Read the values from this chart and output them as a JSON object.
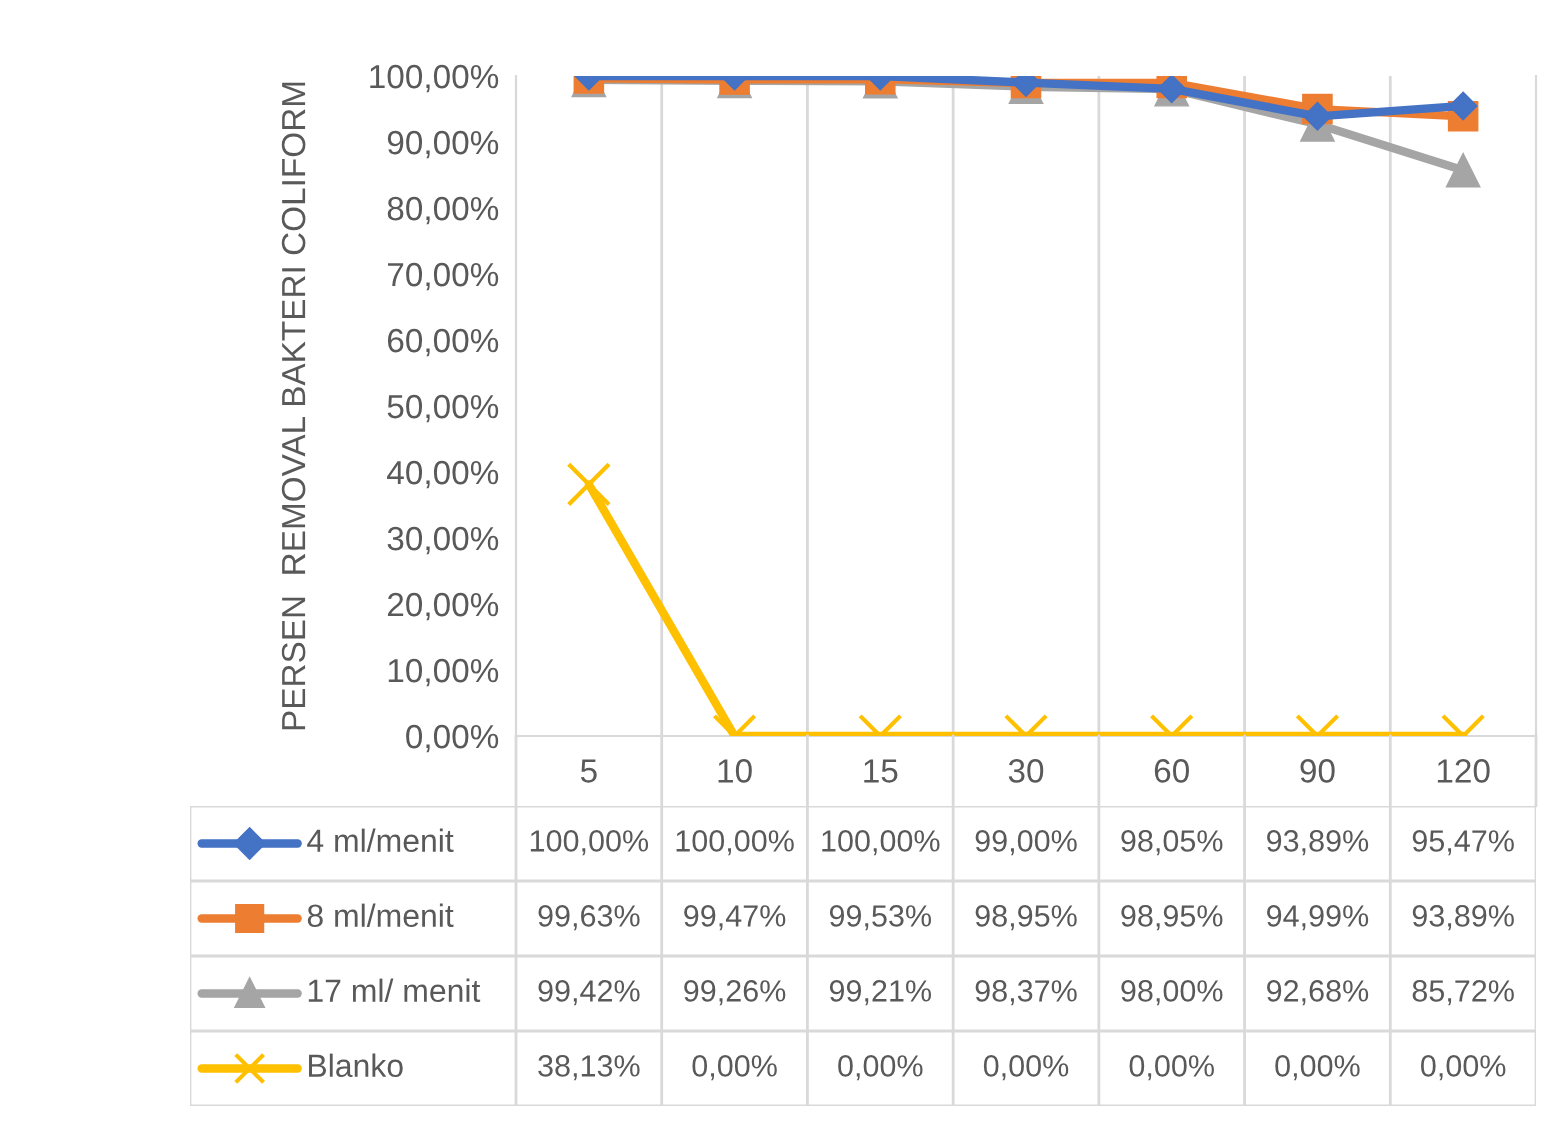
{
  "chart_data": {
    "type": "line",
    "ylabel": "PERSEN  REMOVAL BAKTERI COLIFORM",
    "categories": [
      "5",
      "10",
      "15",
      "30",
      "60",
      "90",
      "120"
    ],
    "series": [
      {
        "name": "4 ml/menit",
        "color": "#4472c4",
        "marker": "diamond",
        "values": [
          100.0,
          100.0,
          100.0,
          99.0,
          98.05,
          93.89,
          95.47
        ],
        "value_labels": [
          "100,00%",
          "100,00%",
          "100,00%",
          "99,00%",
          "98,05%",
          "93,89%",
          "95,47%"
        ]
      },
      {
        "name": "8 ml/menit",
        "color": "#ed7d31",
        "marker": "square",
        "values": [
          99.63,
          99.47,
          99.53,
          98.95,
          98.95,
          94.99,
          93.89
        ],
        "value_labels": [
          "99,63%",
          "99,47%",
          "99,53%",
          "98,95%",
          "98,95%",
          "94,99%",
          "93,89%"
        ]
      },
      {
        "name": "17 ml/ menit",
        "color": "#a5a5a5",
        "marker": "triangle",
        "values": [
          99.42,
          99.26,
          99.21,
          98.37,
          98.0,
          92.68,
          85.72
        ],
        "value_labels": [
          "99,42%",
          "99,26%",
          "99,21%",
          "98,37%",
          "98,00%",
          "92,68%",
          "85,72%"
        ]
      },
      {
        "name": "Blanko",
        "color": "#ffc000",
        "marker": "cross",
        "values": [
          38.13,
          0.0,
          0.0,
          0.0,
          0.0,
          0.0,
          0.0
        ],
        "value_labels": [
          "38,13%",
          "0,00%",
          "0,00%",
          "0,00%",
          "0,00%",
          "0,00%",
          "0,00%"
        ]
      }
    ],
    "ylim": [
      0,
      100
    ],
    "yticks": [
      {
        "value": 0,
        "label": "0,00%"
      },
      {
        "value": 10,
        "label": "10,00%"
      },
      {
        "value": 20,
        "label": "20,00%"
      },
      {
        "value": 30,
        "label": "30,00%"
      },
      {
        "value": 40,
        "label": "40,00%"
      },
      {
        "value": 50,
        "label": "50,00%"
      },
      {
        "value": 60,
        "label": "60,00%"
      },
      {
        "value": 70,
        "label": "70,00%"
      },
      {
        "value": 80,
        "label": "80,00%"
      },
      {
        "value": 90,
        "label": "90,00%"
      },
      {
        "value": 100,
        "label": "100,00%"
      }
    ],
    "grid": "x",
    "legend": "bottom",
    "line_style": "solid"
  }
}
